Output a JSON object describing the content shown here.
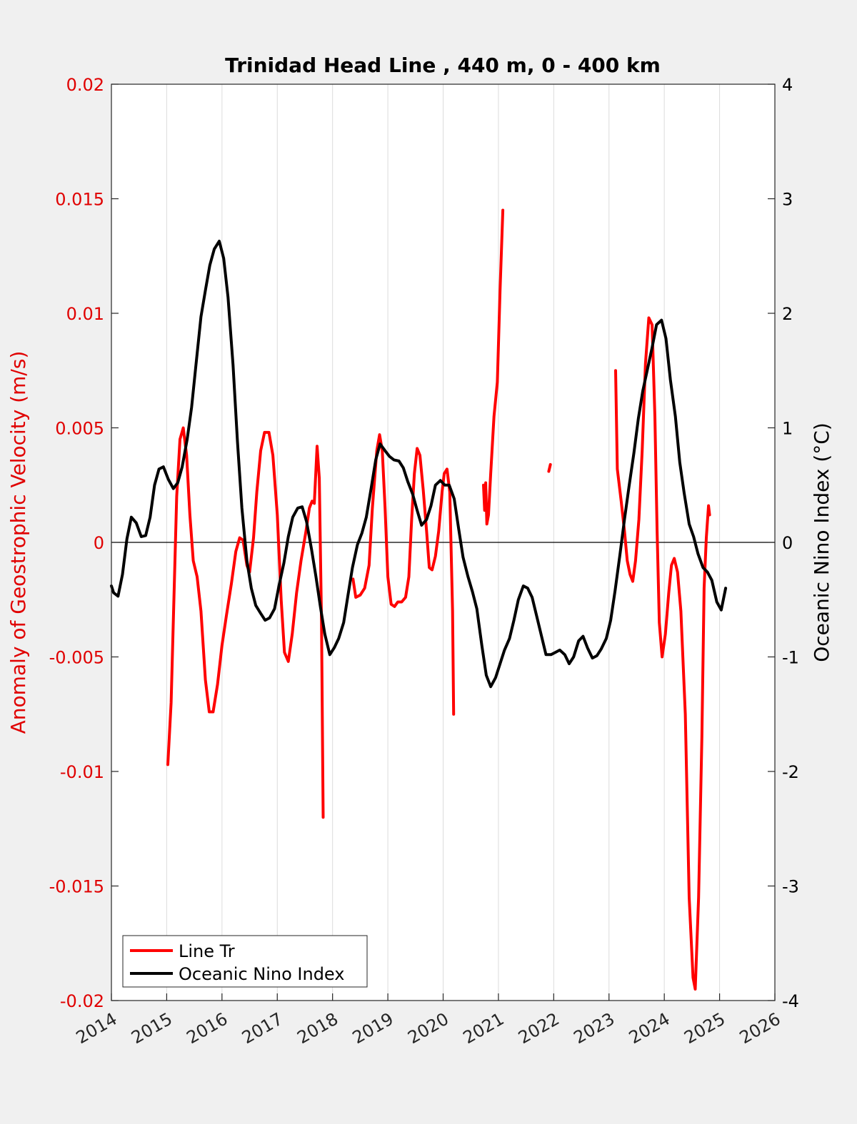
{
  "chart_data": {
    "type": "line",
    "title": "Trinidad Head Line , 440 m, 0 - 400 km",
    "xlabel": "",
    "ylabel_left": "Anomaly of Geostrophic Velocity (m/s)",
    "ylabel_right": "Oceanic Nino Index (°C)",
    "xlim": [
      2014,
      2026
    ],
    "ylim_left": [
      -0.02,
      0.02
    ],
    "ylim_right": [
      -4,
      4
    ],
    "x_ticks": [
      "2014",
      "2015",
      "2016",
      "2017",
      "2018",
      "2019",
      "2020",
      "2021",
      "2022",
      "2023",
      "2024",
      "2025",
      "2026"
    ],
    "y_left_ticks": [
      "0.02",
      "0.015",
      "0.01",
      "0.005",
      "0",
      "-0.005",
      "-0.01",
      "-0.015",
      "-0.02"
    ],
    "y_right_ticks": [
      "4",
      "3",
      "2",
      "1",
      "0",
      "-1",
      "-2",
      "-3",
      "-4"
    ],
    "grid": "vertical",
    "zero_line": true,
    "legend_position": "bottom-left",
    "left_axis_color": "#e00000",
    "series": [
      {
        "name": "Line Tr",
        "color": "#ff0000",
        "axis": "left",
        "segments": [
          [
            [
              2015.02,
              -0.0097
            ],
            [
              2015.08,
              -0.007
            ],
            [
              2015.13,
              -0.0025
            ],
            [
              2015.18,
              0.002
            ],
            [
              2015.24,
              0.0045
            ],
            [
              2015.3,
              0.005
            ],
            [
              2015.36,
              0.0038
            ],
            [
              2015.42,
              0.0012
            ],
            [
              2015.48,
              -0.0008
            ],
            [
              2015.55,
              -0.0015
            ],
            [
              2015.62,
              -0.003
            ],
            [
              2015.7,
              -0.006
            ],
            [
              2015.77,
              -0.0074
            ],
            [
              2015.84,
              -0.0074
            ],
            [
              2015.92,
              -0.0062
            ],
            [
              2016.0,
              -0.0045
            ],
            [
              2016.08,
              -0.0032
            ],
            [
              2016.17,
              -0.0018
            ],
            [
              2016.25,
              -0.0004
            ],
            [
              2016.32,
              0.0002
            ],
            [
              2016.38,
              0.0001
            ],
            [
              2016.45,
              -0.001
            ],
            [
              2016.5,
              -0.0013
            ],
            [
              2016.57,
              0.0002
            ],
            [
              2016.63,
              0.0022
            ],
            [
              2016.7,
              0.004
            ],
            [
              2016.77,
              0.0048
            ],
            [
              2016.85,
              0.0048
            ],
            [
              2016.92,
              0.0038
            ],
            [
              2017.0,
              0.0012
            ],
            [
              2017.07,
              -0.0025
            ],
            [
              2017.13,
              -0.0048
            ],
            [
              2017.2,
              -0.0052
            ],
            [
              2017.27,
              -0.004
            ],
            [
              2017.35,
              -0.0022
            ],
            [
              2017.43,
              -0.0008
            ],
            [
              2017.52,
              0.0005
            ],
            [
              2017.58,
              0.0015
            ],
            [
              2017.63,
              0.0018
            ],
            [
              2017.67,
              0.0017
            ],
            [
              2017.72,
              0.0042
            ],
            [
              2017.76,
              0.0028
            ],
            [
              2017.8,
              -0.0035
            ],
            [
              2017.83,
              -0.012
            ]
          ],
          [
            [
              2018.37,
              -0.0016
            ],
            [
              2018.42,
              -0.0024
            ],
            [
              2018.5,
              -0.0023
            ],
            [
              2018.58,
              -0.002
            ],
            [
              2018.66,
              -0.001
            ],
            [
              2018.72,
              0.0015
            ],
            [
              2018.8,
              0.004
            ],
            [
              2018.85,
              0.0047
            ],
            [
              2018.9,
              0.004
            ],
            [
              2018.95,
              0.0015
            ],
            [
              2019.0,
              -0.0015
            ],
            [
              2019.06,
              -0.0027
            ],
            [
              2019.12,
              -0.0028
            ],
            [
              2019.18,
              -0.0026
            ],
            [
              2019.25,
              -0.0026
            ],
            [
              2019.32,
              -0.0024
            ],
            [
              2019.38,
              -0.0015
            ],
            [
              2019.43,
              0.001
            ],
            [
              2019.48,
              0.003
            ],
            [
              2019.53,
              0.0041
            ],
            [
              2019.58,
              0.0038
            ],
            [
              2019.64,
              0.0023
            ],
            [
              2019.7,
              0.0005
            ],
            [
              2019.75,
              -0.0011
            ],
            [
              2019.8,
              -0.0012
            ],
            [
              2019.86,
              -0.0006
            ],
            [
              2019.92,
              0.0005
            ],
            [
              2019.98,
              0.0022
            ],
            [
              2020.02,
              0.003
            ],
            [
              2020.07,
              0.0032
            ],
            [
              2020.12,
              0.0022
            ],
            [
              2020.17,
              -0.003
            ],
            [
              2020.19,
              -0.0075
            ]
          ],
          [
            [
              2020.73,
              0.0025
            ],
            [
              2020.75,
              0.0014
            ],
            [
              2020.77,
              0.0026
            ],
            [
              2020.79,
              0.0008
            ],
            [
              2020.82,
              0.0012
            ],
            [
              2020.86,
              0.003
            ],
            [
              2020.92,
              0.0055
            ],
            [
              2020.98,
              0.007
            ],
            [
              2021.03,
              0.011
            ],
            [
              2021.08,
              0.0145
            ]
          ],
          [
            [
              2021.91,
              0.0031
            ],
            [
              2021.94,
              0.0034
            ]
          ],
          [
            [
              2023.12,
              0.0075
            ],
            [
              2023.15,
              0.0032
            ],
            [
              2023.22,
              0.0018
            ],
            [
              2023.28,
              0.0005
            ],
            [
              2023.33,
              -0.0008
            ],
            [
              2023.38,
              -0.0014
            ],
            [
              2023.43,
              -0.0017
            ],
            [
              2023.48,
              -0.0008
            ],
            [
              2023.54,
              0.001
            ],
            [
              2023.6,
              0.004
            ],
            [
              2023.66,
              0.0078
            ],
            [
              2023.72,
              0.0098
            ],
            [
              2023.78,
              0.0095
            ],
            [
              2023.83,
              0.0055
            ],
            [
              2023.87,
              0.0005
            ],
            [
              2023.91,
              -0.0035
            ],
            [
              2023.96,
              -0.005
            ],
            [
              2024.02,
              -0.004
            ],
            [
              2024.08,
              -0.0022
            ],
            [
              2024.13,
              -0.001
            ],
            [
              2024.18,
              -0.0007
            ],
            [
              2024.24,
              -0.0013
            ],
            [
              2024.3,
              -0.003
            ],
            [
              2024.38,
              -0.0075
            ],
            [
              2024.45,
              -0.0155
            ],
            [
              2024.52,
              -0.019
            ],
            [
              2024.56,
              -0.0195
            ],
            [
              2024.62,
              -0.0155
            ],
            [
              2024.68,
              -0.0085
            ],
            [
              2024.72,
              -0.002
            ],
            [
              2024.76,
              0.0002
            ],
            [
              2024.8,
              0.0016
            ],
            [
              2024.82,
              0.0012
            ]
          ]
        ]
      },
      {
        "name": "Oceanic Nino Index",
        "color": "#000000",
        "axis": "right",
        "segments": [
          [
            [
              2014.0,
              -0.38
            ],
            [
              2014.04,
              -0.44
            ],
            [
              2014.12,
              -0.47
            ],
            [
              2014.2,
              -0.28
            ],
            [
              2014.28,
              0.03
            ],
            [
              2014.36,
              0.22
            ],
            [
              2014.45,
              0.17
            ],
            [
              2014.54,
              0.05
            ],
            [
              2014.62,
              0.06
            ],
            [
              2014.7,
              0.22
            ],
            [
              2014.78,
              0.5
            ],
            [
              2014.86,
              0.64
            ],
            [
              2014.94,
              0.66
            ],
            [
              2015.03,
              0.55
            ],
            [
              2015.12,
              0.47
            ],
            [
              2015.2,
              0.52
            ],
            [
              2015.28,
              0.66
            ],
            [
              2015.37,
              0.9
            ],
            [
              2015.45,
              1.18
            ],
            [
              2015.53,
              1.55
            ],
            [
              2015.62,
              1.97
            ],
            [
              2015.7,
              2.2
            ],
            [
              2015.78,
              2.42
            ],
            [
              2015.86,
              2.56
            ],
            [
              2015.95,
              2.63
            ],
            [
              2016.03,
              2.48
            ],
            [
              2016.11,
              2.14
            ],
            [
              2016.2,
              1.55
            ],
            [
              2016.28,
              0.88
            ],
            [
              2016.36,
              0.3
            ],
            [
              2016.45,
              -0.16
            ],
            [
              2016.53,
              -0.4
            ],
            [
              2016.61,
              -0.55
            ],
            [
              2016.7,
              -0.62
            ],
            [
              2016.78,
              -0.68
            ],
            [
              2016.86,
              -0.66
            ],
            [
              2016.95,
              -0.58
            ],
            [
              2017.03,
              -0.38
            ],
            [
              2017.12,
              -0.18
            ],
            [
              2017.2,
              0.05
            ],
            [
              2017.28,
              0.22
            ],
            [
              2017.37,
              0.3
            ],
            [
              2017.45,
              0.31
            ],
            [
              2017.53,
              0.18
            ],
            [
              2017.62,
              -0.06
            ],
            [
              2017.7,
              -0.3
            ],
            [
              2017.78,
              -0.56
            ],
            [
              2017.86,
              -0.8
            ],
            [
              2017.95,
              -0.98
            ],
            [
              2018.03,
              -0.92
            ],
            [
              2018.11,
              -0.84
            ],
            [
              2018.2,
              -0.7
            ],
            [
              2018.28,
              -0.46
            ],
            [
              2018.36,
              -0.22
            ],
            [
              2018.45,
              -0.02
            ],
            [
              2018.53,
              0.08
            ],
            [
              2018.61,
              0.22
            ],
            [
              2018.7,
              0.48
            ],
            [
              2018.78,
              0.72
            ],
            [
              2018.86,
              0.86
            ],
            [
              2018.95,
              0.8
            ],
            [
              2019.03,
              0.75
            ],
            [
              2019.11,
              0.72
            ],
            [
              2019.2,
              0.71
            ],
            [
              2019.28,
              0.65
            ],
            [
              2019.36,
              0.53
            ],
            [
              2019.45,
              0.42
            ],
            [
              2019.53,
              0.28
            ],
            [
              2019.61,
              0.15
            ],
            [
              2019.7,
              0.2
            ],
            [
              2019.78,
              0.32
            ],
            [
              2019.86,
              0.5
            ],
            [
              2019.95,
              0.54
            ],
            [
              2020.03,
              0.5
            ],
            [
              2020.11,
              0.5
            ],
            [
              2020.2,
              0.38
            ],
            [
              2020.28,
              0.12
            ],
            [
              2020.36,
              -0.13
            ],
            [
              2020.45,
              -0.3
            ],
            [
              2020.53,
              -0.43
            ],
            [
              2020.61,
              -0.58
            ],
            [
              2020.7,
              -0.9
            ],
            [
              2020.78,
              -1.16
            ],
            [
              2020.86,
              -1.26
            ],
            [
              2020.95,
              -1.18
            ],
            [
              2021.03,
              -1.06
            ],
            [
              2021.11,
              -0.94
            ],
            [
              2021.2,
              -0.84
            ],
            [
              2021.28,
              -0.68
            ],
            [
              2021.36,
              -0.5
            ],
            [
              2021.45,
              -0.38
            ],
            [
              2021.53,
              -0.4
            ],
            [
              2021.61,
              -0.48
            ],
            [
              2021.7,
              -0.66
            ],
            [
              2021.78,
              -0.82
            ],
            [
              2021.86,
              -0.98
            ],
            [
              2021.95,
              -0.98
            ],
            [
              2022.03,
              -0.96
            ],
            [
              2022.11,
              -0.94
            ],
            [
              2022.2,
              -0.98
            ],
            [
              2022.28,
              -1.06
            ],
            [
              2022.36,
              -1.0
            ],
            [
              2022.45,
              -0.86
            ],
            [
              2022.53,
              -0.82
            ],
            [
              2022.61,
              -0.92
            ],
            [
              2022.7,
              -1.01
            ],
            [
              2022.78,
              -0.99
            ],
            [
              2022.86,
              -0.93
            ],
            [
              2022.95,
              -0.84
            ],
            [
              2023.03,
              -0.68
            ],
            [
              2023.11,
              -0.42
            ],
            [
              2023.2,
              -0.1
            ],
            [
              2023.28,
              0.2
            ],
            [
              2023.36,
              0.48
            ],
            [
              2023.45,
              0.78
            ],
            [
              2023.53,
              1.08
            ],
            [
              2023.61,
              1.32
            ],
            [
              2023.7,
              1.52
            ],
            [
              2023.78,
              1.7
            ],
            [
              2023.86,
              1.9
            ],
            [
              2023.95,
              1.94
            ],
            [
              2024.03,
              1.78
            ],
            [
              2024.11,
              1.42
            ],
            [
              2024.2,
              1.1
            ],
            [
              2024.28,
              0.7
            ],
            [
              2024.36,
              0.43
            ],
            [
              2024.45,
              0.16
            ],
            [
              2024.53,
              0.05
            ],
            [
              2024.61,
              -0.1
            ],
            [
              2024.7,
              -0.22
            ],
            [
              2024.78,
              -0.26
            ],
            [
              2024.86,
              -0.33
            ],
            [
              2024.95,
              -0.52
            ],
            [
              2025.03,
              -0.59
            ],
            [
              2025.11,
              -0.4
            ]
          ]
        ]
      }
    ]
  }
}
